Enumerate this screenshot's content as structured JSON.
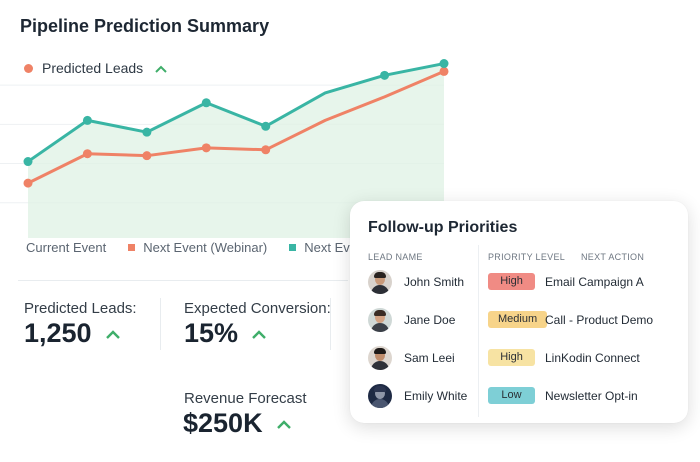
{
  "header": {
    "title": "Pipeline Prediction Summary"
  },
  "chart_legend_top": {
    "label": "Predicted Leads",
    "color": "#ef8266",
    "trend_icon": "chevron-up-icon"
  },
  "chart_legend_bottom": [
    {
      "label": "Current Event",
      "color": ""
    },
    {
      "label": "Next Event (Webinar)",
      "color": "#ef8266"
    },
    {
      "label": "Next Event",
      "color": "#39b5a4"
    }
  ],
  "chart_data": {
    "type": "line",
    "x": [
      "1",
      "2",
      "3",
      "4",
      "5",
      "6",
      "7",
      "8"
    ],
    "series": [
      {
        "name": "Next Event",
        "color": "#39b5a4",
        "values": [
          39,
          60,
          54,
          69,
          57,
          74,
          83,
          89
        ],
        "markers": [
          true,
          true,
          true,
          true,
          true,
          false,
          true,
          true
        ]
      },
      {
        "name": "Next Event (Webinar)",
        "color": "#ef8266",
        "values": [
          28,
          43,
          42,
          46,
          45,
          60,
          72,
          85
        ],
        "markers": [
          true,
          true,
          true,
          true,
          true,
          false,
          false,
          true
        ]
      }
    ],
    "ylim": [
      0,
      100
    ],
    "grid": true,
    "area_fill": "#dff2e4"
  },
  "stats": [
    {
      "label": "Predicted Leads:",
      "value": "1,250",
      "trend_icon": "chevron-up-icon"
    },
    {
      "label": "Expected Conversion:",
      "value": "15%",
      "trend_icon": "chevron-up-icon"
    },
    {
      "label": "Revenue Forecast",
      "value": "$250K",
      "trend_icon": "chevron-up-icon"
    }
  ],
  "followup": {
    "title": "Follow-up Priorities",
    "columns": [
      "LEAD NAME",
      "PRIORITY LEVEL",
      "NEXT ACTION"
    ],
    "rows": [
      {
        "name": "John Smith",
        "priority": "High",
        "priority_color": "#f08b84",
        "action": "Email Campaign A",
        "avatar_icon": "person-avatar"
      },
      {
        "name": "Jane Doe",
        "priority": "Medium",
        "priority_color": "#f7d48a",
        "action": "Call - Product Demo",
        "avatar_icon": "person-avatar"
      },
      {
        "name": "Sam Leei",
        "priority": "High",
        "priority_color": "#f7e3a3",
        "action": "LinKodin Connect",
        "avatar_icon": "person-avatar"
      },
      {
        "name": "Emily White",
        "priority": "Low",
        "priority_color": "#7ecfd6",
        "action": "Newsletter Opt-in",
        "avatar_icon": "person-avatar"
      }
    ]
  },
  "colors": {
    "accent_up": "#3fae6a",
    "teal": "#39b5a4",
    "coral": "#ef8266"
  }
}
